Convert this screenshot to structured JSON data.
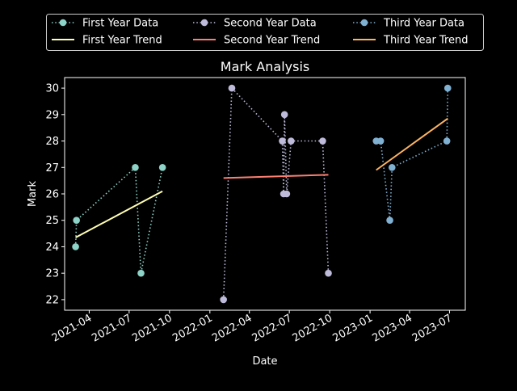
{
  "chart_data": {
    "type": "line",
    "title": "Mark Analysis",
    "xlabel": "Date",
    "ylabel": "Mark",
    "xlim": [
      "2021-02-04",
      "2023-08-06"
    ],
    "ylim": [
      21.6,
      30.4
    ],
    "x_ticks": [
      "2021-04",
      "2021-07",
      "2021-10",
      "2022-01",
      "2022-04",
      "2022-07",
      "2022-10",
      "2023-01",
      "2023-04",
      "2023-07"
    ],
    "y_ticks": [
      22,
      23,
      24,
      25,
      26,
      27,
      28,
      29,
      30
    ],
    "grid": false,
    "legend_position": "top",
    "background": "#000000",
    "series": [
      {
        "name": "First Year Data",
        "style": "dotted-markers",
        "color": "#8dd3c7",
        "x": [
          "2021-03-01",
          "2021-03-03",
          "2021-07-15",
          "2021-07-28",
          "2021-09-15"
        ],
        "values": [
          24,
          25,
          27,
          23,
          27
        ]
      },
      {
        "name": "First Year Trend",
        "style": "line",
        "color": "#ffffb3",
        "x": [
          "2021-03-01",
          "2021-09-15"
        ],
        "values": [
          24.35,
          26.1
        ]
      },
      {
        "name": "Second Year Data",
        "style": "dotted-markers",
        "color": "#bebada",
        "x": [
          "2022-02-01",
          "2022-02-20",
          "2022-06-15",
          "2022-06-18",
          "2022-06-20",
          "2022-06-25",
          "2022-07-05",
          "2022-09-15",
          "2022-09-28"
        ],
        "values": [
          22,
          30,
          28,
          26,
          29,
          26,
          28,
          28,
          23
        ]
      },
      {
        "name": "Second Year Trend",
        "style": "line",
        "color": "#fb8072",
        "x": [
          "2022-02-01",
          "2022-09-28"
        ],
        "values": [
          26.6,
          26.72
        ]
      },
      {
        "name": "Third Year Data",
        "style": "dotted-markers",
        "color": "#80b1d3",
        "x": [
          "2023-01-15",
          "2023-01-25",
          "2023-02-15",
          "2023-02-20",
          "2023-06-25",
          "2023-06-27"
        ],
        "values": [
          28,
          28,
          25,
          27,
          28,
          30
        ]
      },
      {
        "name": "Third Year Trend",
        "style": "line",
        "color": "#fdb462",
        "x": [
          "2023-01-15",
          "2023-06-27"
        ],
        "values": [
          26.9,
          28.85
        ]
      }
    ]
  }
}
